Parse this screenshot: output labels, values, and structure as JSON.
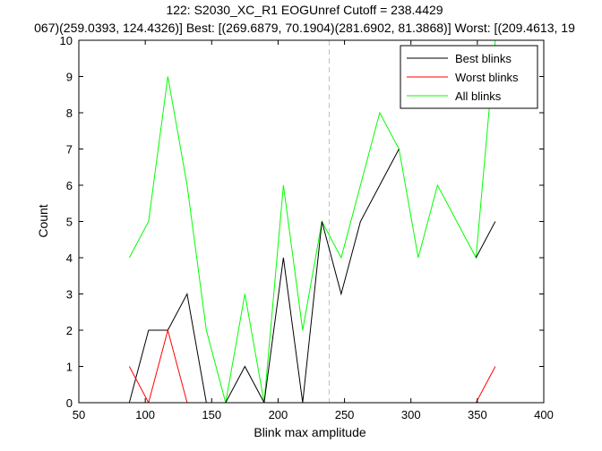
{
  "chart_data": {
    "type": "line",
    "title": "122: S2030_XC_R1 EOGUnref Cutoff = 238.4429",
    "subtitle": "067)(259.0393, 124.4326)] Best: [(269.6879, 70.1904)(281.6902, 81.3868)] Worst: [(209.4613, 19",
    "xlabel": "Blink max amplitude",
    "ylabel": "Count",
    "xlim": [
      50,
      400
    ],
    "ylim": [
      0,
      10
    ],
    "xticks": [
      "50",
      "100",
      "150",
      "200",
      "250",
      "300",
      "350",
      "400"
    ],
    "yticks": [
      "0",
      "1",
      "2",
      "3",
      "4",
      "5",
      "6",
      "7",
      "8",
      "9",
      "10"
    ],
    "cutoff": 238.4429,
    "grid": false,
    "legend_position": "top-right",
    "x": [
      88,
      102.5,
      117,
      131.5,
      146,
      160.5,
      175,
      189.5,
      204,
      218.5,
      233,
      247.5,
      262,
      276.5,
      291,
      305.5,
      320,
      334.5,
      349,
      363.5
    ],
    "series": [
      {
        "name": "Best blinks",
        "color": "#000000",
        "values": [
          0,
          2,
          2,
          3,
          0,
          0,
          1,
          0,
          4,
          0,
          5,
          3,
          5,
          6,
          7,
          null,
          null,
          null,
          4,
          5
        ]
      },
      {
        "name": "Worst blinks",
        "color": "#ff0000",
        "values": [
          1,
          0,
          2,
          0,
          null,
          null,
          null,
          null,
          null,
          null,
          null,
          null,
          null,
          null,
          null,
          null,
          null,
          null,
          0,
          1
        ]
      },
      {
        "name": "All blinks",
        "color": "#00ff00",
        "values": [
          4,
          5,
          9,
          6,
          2,
          0,
          3,
          0,
          6,
          2,
          5,
          4,
          6,
          8,
          7,
          4,
          6,
          5,
          4,
          10
        ]
      }
    ]
  }
}
